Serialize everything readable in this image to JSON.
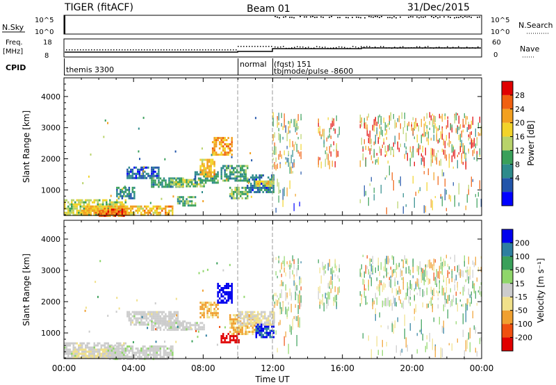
{
  "header": {
    "title": "TIGER (fitACF)",
    "beam": "Beam 01",
    "date": "31/Dec/2015"
  },
  "strips": {
    "nsky_label": "N.Sky",
    "nsearch_label": "N.Search",
    "nsky_ticks": [
      "10^5",
      "10^0"
    ],
    "nsearch_ticks": [
      "10^5",
      "10^0"
    ],
    "freq_label_1": "Freq.",
    "freq_label_2": "[MHz]",
    "freq_ticks": [
      "18",
      "8"
    ],
    "nave_label": "Nave",
    "nave_ticks": [
      "60",
      "0"
    ],
    "cpid_label": "CPID",
    "cpid_segments": [
      {
        "label": "themis 3300",
        "start_hour": 0.0
      },
      {
        "label": "normal",
        "start_hour": 10.0
      },
      {
        "label": "(fqst) 151",
        "start_hour": 12.0
      },
      {
        "label": "tbjmode/pulse -8600",
        "start_hour": 12.0
      }
    ]
  },
  "chart_data": [
    {
      "type": "heatmap",
      "parameter": "power",
      "xlabel": "",
      "ylabel": "Slant Range [km]",
      "xlim": [
        0,
        24
      ],
      "ylim": [
        180,
        4600
      ],
      "yticks": [
        1000,
        2000,
        3000,
        4000
      ],
      "colorbar_label": "Power [dB]",
      "colorbar_ticks": [
        "28",
        "24",
        "20",
        "16",
        "12",
        "8",
        "4"
      ],
      "color_range": [
        0,
        30
      ],
      "regions": [
        {
          "x": [
            0.0,
            3.5
          ],
          "y": [
            220,
            700
          ],
          "value": 16
        },
        {
          "x": [
            1.0,
            6.2
          ],
          "y": [
            200,
            500
          ],
          "value": 20
        },
        {
          "x": [
            2.0,
            3.5
          ],
          "y": [
            180,
            400
          ],
          "value": 25
        },
        {
          "x": [
            3.0,
            4.0
          ],
          "y": [
            700,
            1100
          ],
          "value": 9
        },
        {
          "x": [
            3.6,
            5.4
          ],
          "y": [
            1400,
            1750
          ],
          "value": 6
        },
        {
          "x": [
            5.0,
            6.8
          ],
          "y": [
            1100,
            1400
          ],
          "value": 10
        },
        {
          "x": [
            6.5,
            7.5
          ],
          "y": [
            500,
            800
          ],
          "value": 12
        },
        {
          "x": [
            6.0,
            8.0
          ],
          "y": [
            1100,
            1350
          ],
          "value": 14
        },
        {
          "x": [
            7.5,
            8.8
          ],
          "y": [
            1200,
            1600
          ],
          "value": 10
        },
        {
          "x": [
            7.8,
            8.6
          ],
          "y": [
            1400,
            2000
          ],
          "value": 20
        },
        {
          "x": [
            8.5,
            9.6
          ],
          "y": [
            2100,
            2700
          ],
          "value": 21
        },
        {
          "x": [
            9.0,
            10.5
          ],
          "y": [
            1300,
            1800
          ],
          "value": 10
        },
        {
          "x": [
            9.5,
            10.5
          ],
          "y": [
            700,
            1100
          ],
          "value": 13
        },
        {
          "x": [
            10.5,
            12.0
          ],
          "y": [
            900,
            1500
          ],
          "value": 7
        },
        {
          "x": [
            11.0,
            12.0
          ],
          "y": [
            1100,
            1300
          ],
          "value": 17
        }
      ],
      "scatter_regions": [
        {
          "x": [
            12.0,
            13.6
          ],
          "y": [
            1800,
            3500
          ],
          "value": 16
        },
        {
          "x": [
            14.6,
            15.8
          ],
          "y": [
            1900,
            3400
          ],
          "value": 19
        },
        {
          "x": [
            17.0,
            24.0
          ],
          "y": [
            1900,
            3500
          ],
          "value": 20
        },
        {
          "x": [
            12.0,
            13.6
          ],
          "y": [
            400,
            1800
          ],
          "value": 12
        },
        {
          "x": [
            17.0,
            24.0
          ],
          "y": [
            400,
            1800
          ],
          "value": 15
        }
      ]
    },
    {
      "type": "heatmap",
      "parameter": "velocity",
      "xlabel": "Time UT",
      "ylabel": "Slant Range [km]",
      "xlim": [
        0,
        24
      ],
      "ylim": [
        180,
        4600
      ],
      "yticks": [
        1000,
        2000,
        3000,
        4000
      ],
      "xticks": [
        "00:00",
        "04:00",
        "08:00",
        "12:00",
        "16:00",
        "20:00",
        "00:00"
      ],
      "colorbar_label": "Velocity [m s⁻¹]",
      "colorbar_ticks": [
        "200",
        "100",
        "50",
        "15",
        "-15",
        "-50",
        "-100",
        "-200"
      ],
      "color_range": [
        -250,
        250
      ],
      "regions": [
        {
          "x": [
            0.0,
            3.5
          ],
          "y": [
            220,
            700
          ],
          "value": 0
        },
        {
          "x": [
            0.5,
            2.5
          ],
          "y": [
            200,
            500
          ],
          "value": -40
        },
        {
          "x": [
            2.5,
            6.2
          ],
          "y": [
            200,
            600
          ],
          "value": 5
        },
        {
          "x": [
            3.6,
            6.5
          ],
          "y": [
            1300,
            1700
          ],
          "value": 0
        },
        {
          "x": [
            5.0,
            7.0
          ],
          "y": [
            1100,
            1400
          ],
          "value": 0
        },
        {
          "x": [
            6.0,
            8.0
          ],
          "y": [
            1100,
            1350
          ],
          "value": 5
        },
        {
          "x": [
            7.8,
            8.8
          ],
          "y": [
            1500,
            2000
          ],
          "value": -90
        },
        {
          "x": [
            8.8,
            9.6
          ],
          "y": [
            2000,
            2600
          ],
          "value": 230
        },
        {
          "x": [
            9.0,
            10.0
          ],
          "y": [
            700,
            1000
          ],
          "value": -230
        },
        {
          "x": [
            9.5,
            11.0
          ],
          "y": [
            1000,
            1600
          ],
          "value": -80
        },
        {
          "x": [
            11.0,
            12.0
          ],
          "y": [
            900,
            1300
          ],
          "value": 200
        },
        {
          "x": [
            10.0,
            12.0
          ],
          "y": [
            1300,
            1700
          ],
          "value": -20
        }
      ],
      "scatter_regions": [
        {
          "x": [
            12.0,
            13.6
          ],
          "y": [
            1800,
            3500
          ],
          "value": 0
        },
        {
          "x": [
            14.6,
            15.8
          ],
          "y": [
            1900,
            3400
          ],
          "value": 20
        },
        {
          "x": [
            17.0,
            24.0
          ],
          "y": [
            1900,
            3500
          ],
          "value": 0
        },
        {
          "x": [
            12.0,
            13.6
          ],
          "y": [
            400,
            1800
          ],
          "value": -10
        },
        {
          "x": [
            17.0,
            24.0
          ],
          "y": [
            400,
            1800
          ],
          "value": 10
        }
      ]
    }
  ],
  "colors": {
    "power_scale": [
      "#0000ff",
      "#2255aa",
      "#2e8b8b",
      "#3aa05a",
      "#b8d36a",
      "#f2d32a",
      "#f2a020",
      "#f06010",
      "#e00000"
    ],
    "velocity_scale": [
      "#e00000",
      "#f05010",
      "#f0a030",
      "#f0e08a",
      "#cccccc",
      "#8fd66a",
      "#3aa05a",
      "#2e7fa0",
      "#0000ee"
    ],
    "marker_line": "#999999"
  }
}
